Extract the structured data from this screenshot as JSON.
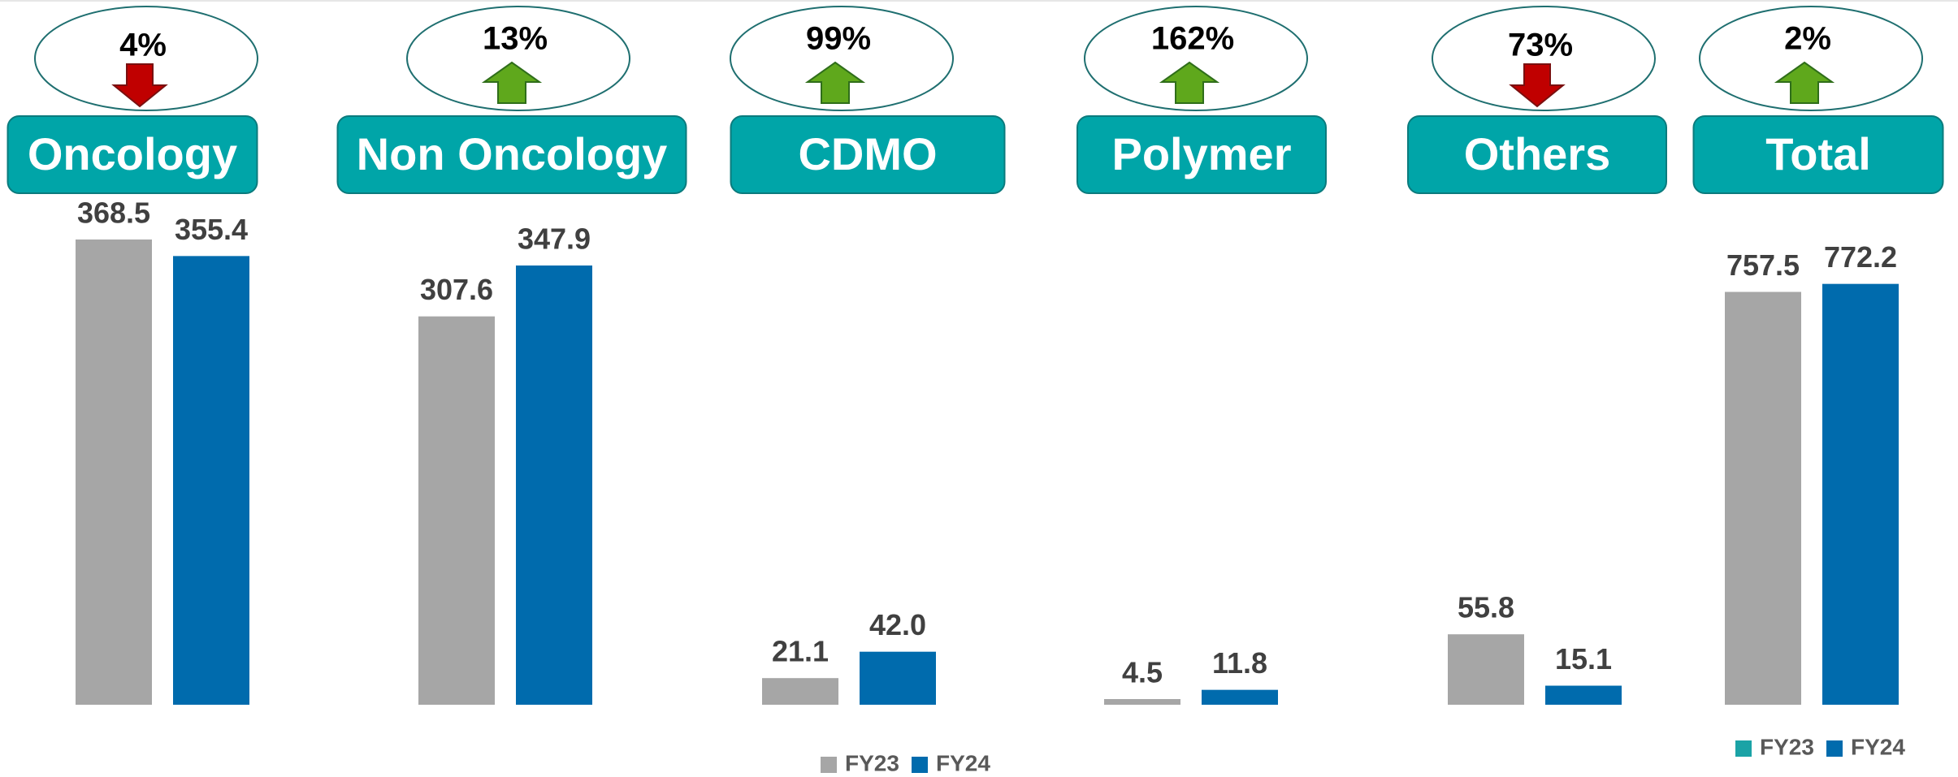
{
  "chart_data": [
    {
      "type": "bar",
      "categories": [
        "Oncology",
        "Non Oncology",
        "CDMO",
        "Polymer",
        "Others"
      ],
      "series": [
        {
          "name": "FY23",
          "color": "#a6a6a6",
          "values": [
            368.5,
            307.6,
            21.1,
            4.5,
            55.8
          ],
          "value_labels": [
            "368.5",
            "307.6",
            "21.1",
            "4.5",
            "55.8"
          ]
        },
        {
          "name": "FY24",
          "color": "#006bad",
          "values": [
            355.4,
            347.9,
            42.0,
            11.8,
            15.1
          ],
          "value_labels": [
            "355.4",
            "347.9",
            "42.0",
            "11.8",
            "15.1"
          ]
        }
      ],
      "changes": [
        {
          "value": 4,
          "label": "4%",
          "direction": "down"
        },
        {
          "value": 13,
          "label": "13%",
          "direction": "up"
        },
        {
          "value": 99,
          "label": "99%",
          "direction": "up"
        },
        {
          "value": 162,
          "label": "162%",
          "direction": "up"
        },
        {
          "value": 73,
          "label": "73%",
          "direction": "down"
        }
      ],
      "ylim": [
        0,
        400
      ],
      "legend": "bottom"
    },
    {
      "type": "bar",
      "categories": [
        "Total"
      ],
      "series": [
        {
          "name": "FY23",
          "color": "#a6a6a6",
          "legend_color": "#1ba3a6",
          "values": [
            757.5
          ],
          "value_labels": [
            "757.5"
          ]
        },
        {
          "name": "FY24",
          "color": "#006bad",
          "values": [
            772.2
          ],
          "value_labels": [
            "772.2"
          ]
        }
      ],
      "changes": [
        {
          "value": 2,
          "label": "2%",
          "direction": "up"
        }
      ],
      "ylim": [
        0,
        800
      ],
      "legend": "bottom"
    }
  ]
}
